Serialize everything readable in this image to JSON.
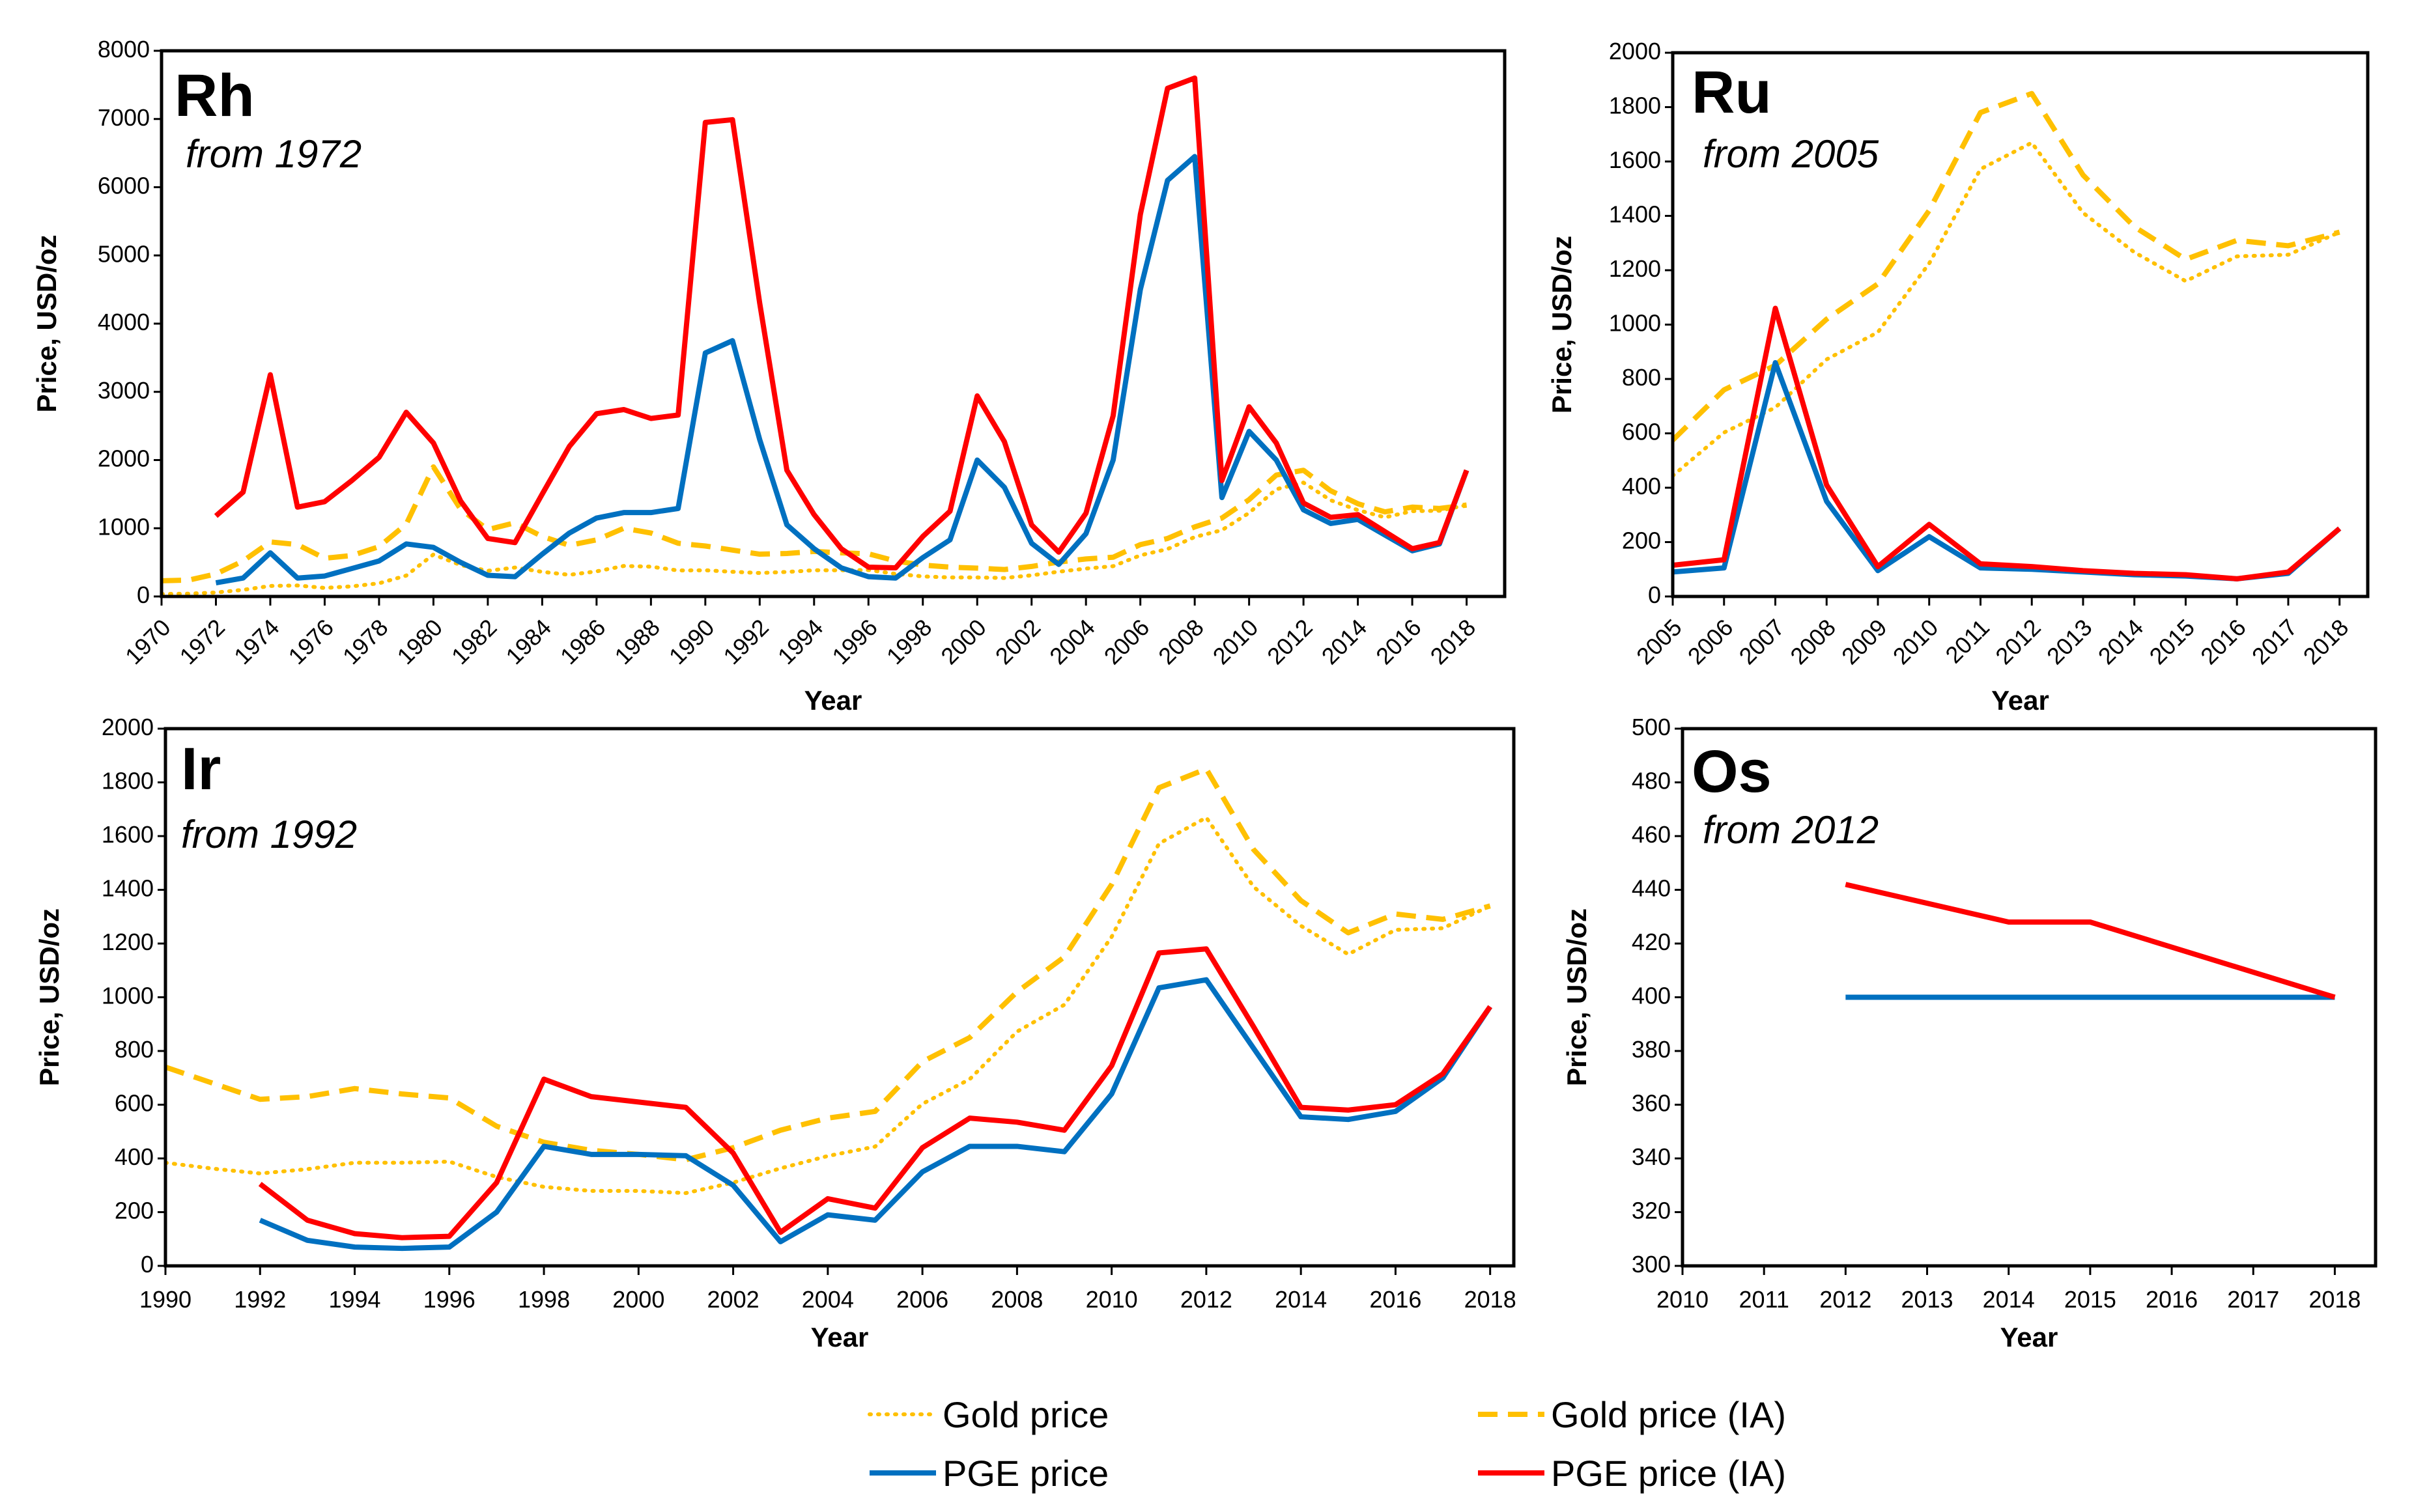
{
  "colors": {
    "gold": "#FFC000",
    "blue": "#0070C0",
    "red": "#FF0000"
  },
  "legend": [
    {
      "label": "Gold price",
      "style": "dotted",
      "color": "#FFC000"
    },
    {
      "label": "Gold price (IA)",
      "style": "dashed",
      "color": "#FFC000"
    },
    {
      "label": "PGE price",
      "style": "solid",
      "color": "#0070C0"
    },
    {
      "label": "PGE price (IA)",
      "style": "solid",
      "color": "#FF0000"
    }
  ],
  "chart_data": [
    {
      "type": "line",
      "title": "Rh",
      "subtitle": "from 1972",
      "xlabel": "Year",
      "ylabel": "Price, USD/oz",
      "xlim": [
        1970,
        2019.4
      ],
      "ylim": [
        0,
        8000
      ],
      "yticks": [
        "0",
        "1000",
        "2000",
        "3000",
        "4000",
        "5000",
        "6000",
        "7000",
        "8000"
      ],
      "xticks": [
        "1970",
        "1972",
        "1974",
        "1976",
        "1978",
        "1980",
        "1982",
        "1984",
        "1986",
        "1988",
        "1990",
        "1992",
        "1994",
        "1996",
        "1998",
        "2000",
        "2002",
        "2004",
        "2006",
        "2008",
        "2010",
        "2012",
        "2014",
        "2016",
        "2018"
      ],
      "series": [
        {
          "name": "Gold price",
          "start": 1970,
          "values": [
            36,
            41,
            58,
            97,
            154,
            161,
            125,
            148,
            193,
            306,
            615,
            460,
            376,
            424,
            361,
            317,
            368,
            447,
            437,
            381,
            384,
            362,
            344,
            360,
            384,
            384,
            388,
            331,
            294,
            279,
            279,
            271,
            310,
            363,
            409,
            444,
            603,
            695,
            872,
            972,
            1225,
            1572,
            1669,
            1411,
            1266,
            1160,
            1251,
            1257,
            1340
          ]
        },
        {
          "name": "Gold price (IA)",
          "start": 1970,
          "values": [
            230,
            240,
            330,
            520,
            800,
            760,
            560,
            600,
            730,
            1060,
            1900,
            1280,
            980,
            1080,
            880,
            750,
            830,
            1000,
            930,
            780,
            740,
            680,
            620,
            630,
            660,
            640,
            625,
            520,
            460,
            430,
            415,
            395,
            440,
            505,
            550,
            575,
            760,
            850,
            1020,
            1150,
            1420,
            1780,
            1850,
            1550,
            1360,
            1240,
            1310,
            1290,
            1340
          ]
        },
        {
          "name": "PGE price",
          "start": 1972,
          "values": [
            200,
            270,
            640,
            270,
            300,
            410,
            520,
            770,
            720,
            500,
            310,
            290,
            620,
            930,
            1150,
            1230,
            1230,
            1290,
            3570,
            3750,
            2300,
            1050,
            700,
            420,
            290,
            270,
            570,
            830,
            2000,
            1600,
            780,
            470,
            920,
            2000,
            4500,
            6100,
            6450,
            1450,
            2420,
            2000,
            1270,
            1070,
            1130,
            900,
            670,
            770,
            1850
          ]
        },
        {
          "name": "PGE price (IA)",
          "start": 1972,
          "values": [
            1180,
            1530,
            3250,
            1310,
            1390,
            1700,
            2040,
            2700,
            2250,
            1400,
            850,
            790,
            1500,
            2200,
            2680,
            2740,
            2610,
            2660,
            6950,
            6990,
            4300,
            1850,
            1200,
            700,
            430,
            420,
            880,
            1250,
            2940,
            2270,
            1050,
            650,
            1220,
            2650,
            5600,
            7450,
            7600,
            1700,
            2780,
            2250,
            1370,
            1160,
            1200,
            950,
            700,
            790,
            1850
          ]
        }
      ]
    },
    {
      "type": "line",
      "title": "Ru",
      "subtitle": "from 2005",
      "xlabel": "Year",
      "ylabel": "Price, USD/oz",
      "xlim": [
        2005,
        2018.55
      ],
      "ylim": [
        0,
        2000
      ],
      "yticks": [
        "0",
        "200",
        "400",
        "600",
        "800",
        "1000",
        "1200",
        "1400",
        "1600",
        "1800",
        "2000"
      ],
      "xticks": [
        "2005",
        "2006",
        "2007",
        "2008",
        "2009",
        "2010",
        "2011",
        "2012",
        "2013",
        "2014",
        "2015",
        "2016",
        "2017",
        "2018"
      ],
      "series": [
        {
          "name": "Gold price",
          "start": 2005,
          "values": [
            444,
            603,
            695,
            872,
            972,
            1225,
            1572,
            1669,
            1411,
            1266,
            1160,
            1251,
            1257,
            1340
          ]
        },
        {
          "name": "Gold price (IA)",
          "start": 2005,
          "values": [
            575,
            760,
            850,
            1020,
            1150,
            1420,
            1780,
            1850,
            1550,
            1360,
            1240,
            1310,
            1290,
            1340
          ]
        },
        {
          "name": "PGE price",
          "start": 2005,
          "values": [
            90,
            105,
            860,
            350,
            95,
            220,
            105,
            100,
            90,
            80,
            75,
            65,
            85,
            250
          ]
        },
        {
          "name": "PGE price (IA)",
          "start": 2005,
          "values": [
            115,
            135,
            1060,
            410,
            110,
            265,
            120,
            110,
            95,
            85,
            80,
            65,
            90,
            250
          ]
        }
      ]
    },
    {
      "type": "line",
      "title": "Ir",
      "subtitle": "from 1992",
      "xlabel": "Year",
      "ylabel": "Price, USD/oz",
      "xlim": [
        1990,
        2018.5
      ],
      "ylim": [
        0,
        2000
      ],
      "yticks": [
        "0",
        "200",
        "400",
        "600",
        "800",
        "1000",
        "1200",
        "1400",
        "1600",
        "1800",
        "2000"
      ],
      "xticks": [
        "1990",
        "1992",
        "1994",
        "1996",
        "1998",
        "2000",
        "2002",
        "2004",
        "2006",
        "2008",
        "2010",
        "2012",
        "2014",
        "2016",
        "2018"
      ],
      "series": [
        {
          "name": "Gold price",
          "start": 1990,
          "values": [
            384,
            362,
            344,
            360,
            384,
            384,
            388,
            331,
            294,
            279,
            279,
            271,
            310,
            363,
            409,
            444,
            603,
            695,
            872,
            972,
            1225,
            1572,
            1669,
            1411,
            1266,
            1160,
            1251,
            1257,
            1340
          ]
        },
        {
          "name": "Gold price (IA)",
          "start": 1990,
          "values": [
            740,
            680,
            620,
            630,
            660,
            640,
            625,
            520,
            460,
            430,
            415,
            395,
            440,
            505,
            550,
            575,
            760,
            850,
            1020,
            1150,
            1420,
            1780,
            1850,
            1550,
            1360,
            1240,
            1310,
            1290,
            1340
          ]
        },
        {
          "name": "PGE price",
          "start": 1992,
          "values": [
            170,
            95,
            70,
            65,
            70,
            200,
            445,
            415,
            415,
            410,
            300,
            90,
            190,
            170,
            350,
            445,
            445,
            425,
            640,
            1035,
            1065,
            810,
            555,
            545,
            575,
            700,
            965
          ]
        },
        {
          "name": "PGE price (IA)",
          "start": 1992,
          "values": [
            305,
            170,
            120,
            105,
            110,
            310,
            695,
            630,
            610,
            590,
            420,
            125,
            250,
            215,
            440,
            550,
            535,
            505,
            745,
            1165,
            1180,
            890,
            590,
            580,
            600,
            715,
            965
          ]
        }
      ]
    },
    {
      "type": "line",
      "title": "Os",
      "subtitle": "from 2012",
      "xlabel": "Year",
      "ylabel": "Price, USD/oz",
      "xlim": [
        2010,
        2018.5
      ],
      "ylim": [
        300,
        500
      ],
      "yticks": [
        "300",
        "320",
        "340",
        "360",
        "380",
        "400",
        "420",
        "440",
        "460",
        "480",
        "500"
      ],
      "xticks": [
        "2010",
        "2011",
        "2012",
        "2013",
        "2014",
        "2015",
        "2016",
        "2017",
        "2018"
      ],
      "series": [
        {
          "name": "PGE price",
          "x": [
            2012,
            2014,
            2015,
            2018
          ],
          "values": [
            400,
            400,
            400,
            400
          ]
        },
        {
          "name": "PGE price (IA)",
          "x": [
            2012,
            2014,
            2015,
            2018
          ],
          "values": [
            442,
            428,
            428,
            400
          ]
        }
      ]
    }
  ]
}
